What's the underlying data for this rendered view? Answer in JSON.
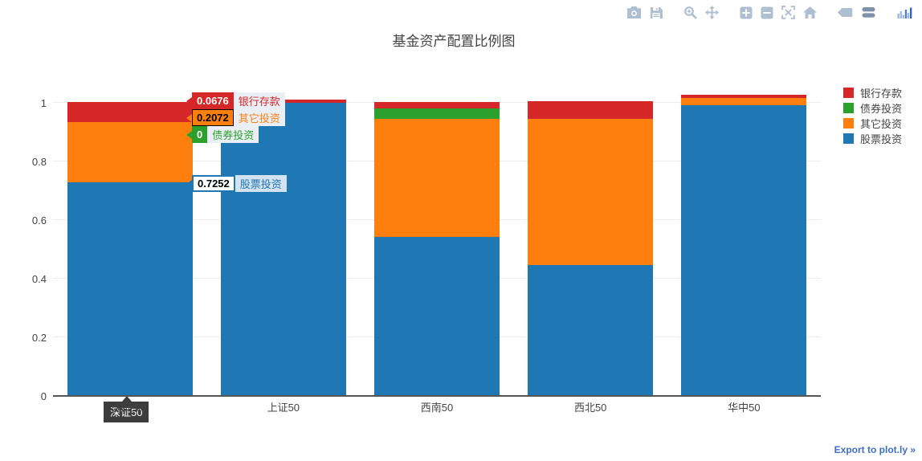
{
  "title": "基金资产配置比例图",
  "export_link": "Export to plot.ly »",
  "toolbar": {
    "icons": [
      "camera-icon",
      "save-icon",
      "zoom-icon",
      "pan-icon",
      "zoom-in-icon",
      "zoom-out-icon",
      "autoscale-icon",
      "home-icon",
      "hover-closest-icon",
      "hover-compare-icon",
      "plotly-logo-icon"
    ]
  },
  "colors": {
    "bank": "#d62728",
    "bond": "#2ca02c",
    "other": "#ff7f0e",
    "stock": "#1f77b4",
    "axis_text": "#444444",
    "export_blue": "#3f6ec7"
  },
  "chart_data": {
    "type": "bar",
    "stacked": true,
    "title": "基金资产配置比例图",
    "xlabel": "",
    "ylabel": "",
    "categories": [
      "深证50",
      "上证50",
      "西南50",
      "西北50",
      "华中50"
    ],
    "series": [
      {
        "name": "股票投资",
        "color": "#1f77b4",
        "values": [
          0.7252,
          0.997,
          0.54,
          0.444,
          0.99
        ]
      },
      {
        "name": "其它投资",
        "color": "#ff7f0e",
        "values": [
          0.2072,
          0,
          0.403,
          0.498,
          0.025
        ]
      },
      {
        "name": "债券投资",
        "color": "#2ca02c",
        "values": [
          0,
          0,
          0.036,
          0,
          0
        ]
      },
      {
        "name": "银行存款",
        "color": "#d62728",
        "values": [
          0.0676,
          0.011,
          0.022,
          0.06,
          0.011
        ]
      }
    ],
    "legend_order": [
      "银行存款",
      "债券投资",
      "其它投资",
      "股票投资"
    ],
    "legend_position": "right",
    "yticks": [
      0,
      0.2,
      0.4,
      0.6,
      0.8,
      1
    ],
    "ylim": [
      0,
      1.065
    ],
    "grid": true
  },
  "hover": {
    "category": "深证50",
    "items": [
      {
        "value": "0.0676",
        "label": "银行存款",
        "color": "#d62728",
        "value_text": "#ffffff"
      },
      {
        "value": "0.2072",
        "label": "其它投资",
        "color": "#ff7f0e",
        "value_text": "#000000",
        "border": "#000000"
      },
      {
        "value": "0",
        "label": "债券投资",
        "color": "#2ca02c",
        "value_text": "#ffffff"
      },
      {
        "value": "0.7252",
        "label": "股票投资",
        "color": "#1f77b4",
        "value_text": "#000000",
        "inverted": true
      }
    ]
  }
}
